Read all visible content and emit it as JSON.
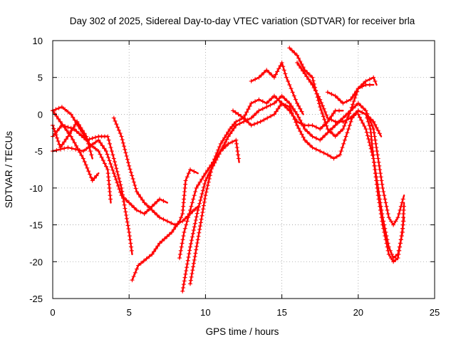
{
  "chart_data": {
    "type": "scatter",
    "title": "Day 302 of 2025, Sidereal Day-to-day VTEC variation (SDTVAR) for receiver brla",
    "xlabel": "GPS time / hours",
    "ylabel": "SDTVAR / TECUs",
    "xlim": [
      0,
      25
    ],
    "ylim": [
      -25,
      10
    ],
    "xticks": [
      0,
      5,
      10,
      15,
      20,
      25
    ],
    "yticks": [
      -25,
      -20,
      -15,
      -10,
      -5,
      0,
      5,
      10
    ],
    "xtick_labels": [
      "0",
      "5",
      "10",
      "15",
      "20",
      "25"
    ],
    "ytick_labels": [
      "-25",
      "-20",
      "-15",
      "-10",
      "-5",
      "0",
      "5",
      "10"
    ],
    "grid": true,
    "marker": "+",
    "series_color": "#ff0000",
    "series": [
      {
        "name": "trace-a",
        "points": [
          [
            0,
            0.5
          ],
          [
            0.5,
            -1
          ],
          [
            1.2,
            -3
          ],
          [
            2,
            -6
          ],
          [
            2.6,
            -9
          ],
          [
            3,
            -8
          ]
        ]
      },
      {
        "name": "trace-b",
        "points": [
          [
            0,
            -1.5
          ],
          [
            0.5,
            -4.5
          ],
          [
            1,
            -3
          ],
          [
            1.6,
            -1
          ],
          [
            2.2,
            -3
          ],
          [
            2.6,
            -6
          ]
        ]
      },
      {
        "name": "trace-c",
        "points": [
          [
            0,
            0.5
          ],
          [
            0.6,
            1
          ],
          [
            1.2,
            0
          ],
          [
            1.8,
            -2
          ],
          [
            2.4,
            -4
          ],
          [
            3,
            -5
          ],
          [
            3.6,
            -7.5
          ],
          [
            3.8,
            -12
          ]
        ]
      },
      {
        "name": "trace-d",
        "points": [
          [
            0,
            -3
          ],
          [
            0.6,
            -1.5
          ],
          [
            1.4,
            -2
          ],
          [
            2.2,
            -3.5
          ],
          [
            3,
            -3
          ],
          [
            3.6,
            -3
          ],
          [
            4,
            -6
          ],
          [
            4.5,
            -10
          ],
          [
            5,
            -16
          ],
          [
            5.2,
            -19
          ]
        ]
      },
      {
        "name": "trace-e",
        "points": [
          [
            0,
            -5
          ],
          [
            1,
            -4.5
          ],
          [
            2,
            -5
          ],
          [
            3,
            -3.5
          ],
          [
            3.5,
            -5
          ],
          [
            4,
            -8
          ],
          [
            4.5,
            -11
          ],
          [
            5,
            -12
          ],
          [
            5.5,
            -13
          ],
          [
            6,
            -13.5
          ],
          [
            6.5,
            -12.5
          ],
          [
            7,
            -11.5
          ],
          [
            7.5,
            -12
          ]
        ]
      },
      {
        "name": "trace-f",
        "points": [
          [
            4,
            -0.5
          ],
          [
            4.5,
            -3
          ],
          [
            5,
            -7
          ],
          [
            5.5,
            -10.5
          ],
          [
            6,
            -12
          ],
          [
            6.5,
            -13
          ],
          [
            7,
            -14
          ],
          [
            7.5,
            -14.5
          ],
          [
            8,
            -15
          ],
          [
            8.5,
            -14.5
          ],
          [
            9,
            -13.5
          ],
          [
            9.5,
            -12.5
          ]
        ]
      },
      {
        "name": "trace-g",
        "points": [
          [
            5.2,
            -22.5
          ],
          [
            5.6,
            -20.5
          ],
          [
            6.5,
            -19
          ],
          [
            7,
            -17.5
          ],
          [
            7.8,
            -16
          ],
          [
            8.3,
            -14.5
          ],
          [
            8.5,
            -13.5
          ],
          [
            8.7,
            -9
          ],
          [
            9,
            -7.5
          ],
          [
            9.5,
            -8
          ]
        ]
      },
      {
        "name": "trace-h",
        "points": [
          [
            8.3,
            -19.5
          ],
          [
            8.6,
            -16
          ],
          [
            9,
            -13
          ],
          [
            9.4,
            -10
          ],
          [
            10,
            -8
          ],
          [
            10.5,
            -6.5
          ],
          [
            11,
            -4
          ],
          [
            11.6,
            -2
          ],
          [
            12,
            -1
          ],
          [
            12.5,
            -0.5
          ],
          [
            13,
            -1.5
          ],
          [
            13.6,
            -1
          ],
          [
            14.5,
            0
          ],
          [
            15,
            1.5
          ],
          [
            15.5,
            1
          ],
          [
            16,
            -1.5
          ],
          [
            16.5,
            -3.5
          ],
          [
            17,
            -4.5
          ],
          [
            17.5,
            -5
          ],
          [
            18,
            -5.5
          ],
          [
            18.4,
            -6
          ],
          [
            18.8,
            -5.5
          ],
          [
            19.2,
            -3
          ],
          [
            19.6,
            -0.5
          ],
          [
            20,
            0.5
          ],
          [
            20.5,
            0
          ],
          [
            21,
            -1
          ],
          [
            21.5,
            -3
          ]
        ]
      },
      {
        "name": "trace-i",
        "points": [
          [
            8.5,
            -24
          ],
          [
            9,
            -18
          ],
          [
            9.5,
            -13
          ],
          [
            10,
            -9
          ],
          [
            10.5,
            -7
          ],
          [
            11,
            -5
          ],
          [
            11.5,
            -3
          ],
          [
            12,
            -1.5
          ],
          [
            12.5,
            -1
          ],
          [
            13,
            -0.5
          ],
          [
            13.5,
            0.5
          ],
          [
            14,
            1
          ],
          [
            14.5,
            1.5
          ],
          [
            15,
            2.5
          ],
          [
            15.5,
            1.5
          ],
          [
            16,
            0
          ],
          [
            16.5,
            -2
          ],
          [
            17,
            -3
          ],
          [
            17.5,
            -3.5
          ],
          [
            18,
            -2.5
          ],
          [
            18.5,
            -1.5
          ],
          [
            19,
            -0.5
          ],
          [
            19.5,
            0.5
          ],
          [
            20,
            1.5
          ],
          [
            20.5,
            0.5
          ],
          [
            21,
            -2
          ],
          [
            21.3,
            -6
          ],
          [
            21.6,
            -10
          ],
          [
            22,
            -14
          ],
          [
            22.3,
            -15
          ],
          [
            22.6,
            -14
          ],
          [
            23,
            -11
          ]
        ]
      },
      {
        "name": "trace-j",
        "points": [
          [
            9,
            -23
          ],
          [
            9.5,
            -17
          ],
          [
            10,
            -11
          ],
          [
            10.5,
            -6.5
          ],
          [
            11,
            -5
          ],
          [
            11.5,
            -4
          ],
          [
            12,
            -3.5
          ],
          [
            12.2,
            -6.5
          ]
        ]
      },
      {
        "name": "trace-k",
        "points": [
          [
            11.8,
            0.5
          ],
          [
            12.5,
            -0.5
          ],
          [
            13,
            1.5
          ],
          [
            13.5,
            2
          ],
          [
            14,
            1.5
          ],
          [
            14.5,
            2.5
          ],
          [
            15,
            1.5
          ],
          [
            15.5,
            0.5
          ],
          [
            16,
            -1
          ],
          [
            16.5,
            -1.5
          ],
          [
            17,
            -1.5
          ],
          [
            17.5,
            -2
          ],
          [
            18,
            -1
          ],
          [
            18.5,
            0.5
          ],
          [
            19,
            0.5
          ]
        ]
      },
      {
        "name": "trace-l",
        "points": [
          [
            13,
            4.5
          ],
          [
            13.5,
            5
          ],
          [
            14,
            6
          ],
          [
            14.5,
            5
          ],
          [
            15,
            7
          ],
          [
            15.3,
            5
          ],
          [
            15.6,
            3.5
          ],
          [
            16,
            1.5
          ],
          [
            16.4,
            0
          ]
        ]
      },
      {
        "name": "trace-m",
        "points": [
          [
            15.5,
            9
          ],
          [
            16,
            8
          ],
          [
            16.5,
            6
          ],
          [
            17,
            5
          ],
          [
            17.5,
            1
          ],
          [
            18,
            -2
          ],
          [
            18.5,
            -3
          ],
          [
            19,
            -2
          ],
          [
            19.5,
            0.5
          ],
          [
            20,
            3.5
          ],
          [
            20.5,
            4.5
          ],
          [
            21,
            5
          ],
          [
            21.2,
            4
          ]
        ]
      },
      {
        "name": "trace-n",
        "points": [
          [
            16,
            7
          ],
          [
            16.5,
            5.5
          ],
          [
            17,
            4
          ],
          [
            17.5,
            2
          ],
          [
            18,
            -0.5
          ],
          [
            18.5,
            -1
          ],
          [
            19,
            -1
          ],
          [
            19.5,
            -0.5
          ],
          [
            20,
            0.5
          ],
          [
            20.5,
            0
          ],
          [
            20.8,
            -2
          ],
          [
            21,
            -6
          ],
          [
            21.3,
            -10
          ],
          [
            21.6,
            -14
          ],
          [
            22,
            -18
          ],
          [
            22.3,
            -19.5
          ],
          [
            22.6,
            -19
          ],
          [
            22.9,
            -16
          ],
          [
            23,
            -12
          ]
        ]
      },
      {
        "name": "trace-o",
        "points": [
          [
            18,
            3
          ],
          [
            18.5,
            2.5
          ],
          [
            19,
            1.5
          ],
          [
            19.5,
            2
          ],
          [
            20,
            3.5
          ],
          [
            20.5,
            4
          ],
          [
            21,
            4
          ]
        ]
      },
      {
        "name": "trace-p",
        "points": [
          [
            20,
            0
          ],
          [
            20.5,
            -2
          ],
          [
            21,
            -6
          ],
          [
            21.3,
            -11
          ],
          [
            21.6,
            -15
          ],
          [
            22,
            -19
          ],
          [
            22.3,
            -20
          ],
          [
            22.6,
            -19.5
          ],
          [
            22.8,
            -17
          ],
          [
            23,
            -14
          ]
        ]
      }
    ]
  }
}
